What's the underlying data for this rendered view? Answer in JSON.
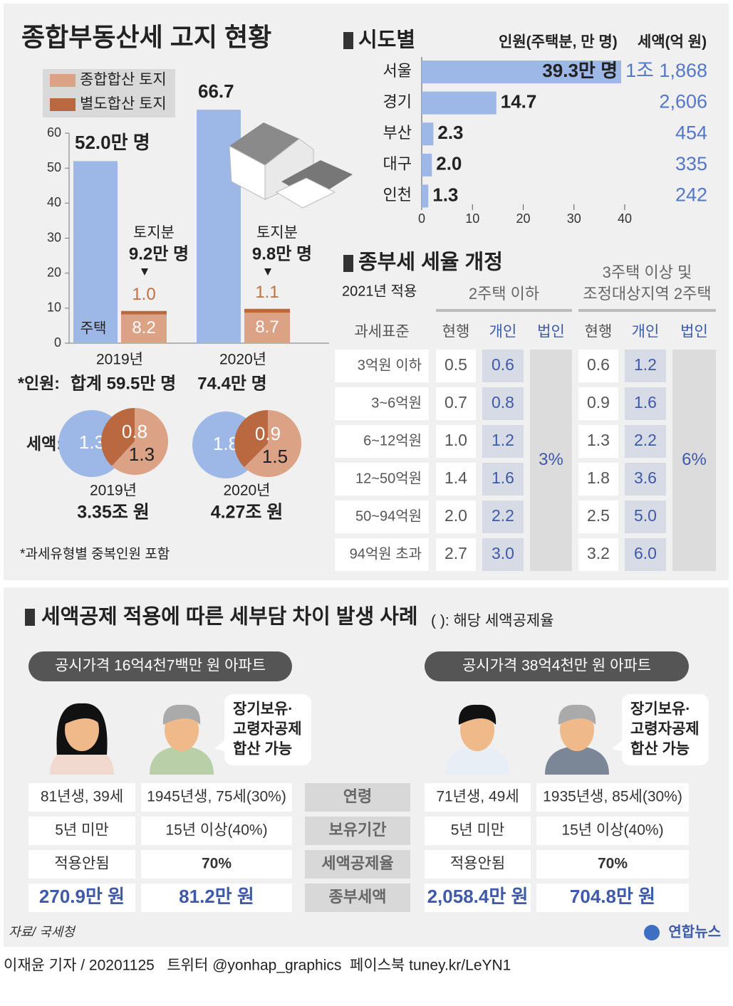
{
  "chart_data": [
    {
      "type": "bar",
      "title": "종합부동산세 고지 현황",
      "categories": [
        "2019년",
        "2020년"
      ],
      "series": [
        {
          "name": "주택",
          "color": "#9db8e6",
          "values": [
            52.0,
            66.7
          ],
          "value_labels": [
            "52.0만 명",
            "66.7"
          ]
        },
        {
          "name": "종합합산 토지",
          "color": "#dba285",
          "values": [
            8.2,
            8.7
          ]
        },
        {
          "name": "별도합산 토지",
          "color": "#b9683f",
          "values": [
            1.0,
            1.1
          ],
          "value_labels": [
            "1.0",
            "1.1"
          ]
        }
      ],
      "ylim": [
        0,
        60
      ],
      "yticks": [
        0,
        10,
        20,
        30,
        40,
        50,
        60
      ],
      "land_title": "토지분",
      "land_totals": [
        "9.2만 명",
        "9.8만 명"
      ],
      "total_label": "*인원:",
      "totals": [
        "합계 59.5만 명",
        "74.4만 명"
      ],
      "footnote": "*과세유형별 중복인원 포함"
    },
    {
      "type": "hbar",
      "title": "시도별",
      "x_label": "인원(주택분, 만 명)",
      "tax_header": "세액(억 원)",
      "categories": [
        "서울",
        "경기",
        "부산",
        "대구",
        "인천"
      ],
      "values": [
        39.3,
        14.7,
        2.3,
        2.0,
        1.3
      ],
      "value_labels": [
        "39.3만 명",
        "14.7",
        "2.3",
        "2.0",
        "1.3"
      ],
      "tax_labels": [
        "1조 1,868",
        "2,606",
        "454",
        "335",
        "242"
      ],
      "color": "#9db8e6",
      "xlim": [
        0,
        40
      ],
      "xticks": [
        0,
        10,
        20,
        30,
        40
      ]
    },
    {
      "type": "pie",
      "label": "세액:",
      "title": "2019년",
      "total": "3.35조 원",
      "circles": [
        {
          "values": [
            1.3
          ],
          "colors": [
            "#9db8e6"
          ]
        },
        {
          "values": [
            0.8,
            1.3
          ],
          "colors": [
            "#b9683f",
            "#dba285"
          ]
        }
      ]
    },
    {
      "type": "pie",
      "title": "2020년",
      "total": "4.27조 원",
      "circles": [
        {
          "values": [
            1.8
          ],
          "colors": [
            "#9db8e6"
          ]
        },
        {
          "values": [
            0.9,
            1.5
          ],
          "colors": [
            "#b9683f",
            "#dba285"
          ]
        }
      ]
    }
  ],
  "rate_table": {
    "title": "종부세 세율 개정",
    "subtitle": "2021년 적용",
    "groups": [
      [
        "2주택 이하"
      ],
      [
        "3주택 이상 및",
        "조정대상지역 2주택"
      ]
    ],
    "columns": [
      "과세표준",
      "현행",
      "개인",
      "법인",
      "현행",
      "개인",
      "법인"
    ],
    "rows": [
      [
        "3억원 이하",
        "0.5",
        "0.6",
        "0.6",
        "1.2"
      ],
      [
        "3~6억원",
        "0.7",
        "0.8",
        "0.9",
        "1.6"
      ],
      [
        "6~12억원",
        "1.0",
        "1.2",
        "1.3",
        "2.2"
      ],
      [
        "12~50억원",
        "1.4",
        "1.6",
        "1.8",
        "3.6"
      ],
      [
        "50~94억원",
        "2.0",
        "2.2",
        "2.5",
        "5.0"
      ],
      [
        "94억원 초과",
        "2.7",
        "3.0",
        "3.2",
        "6.0"
      ]
    ],
    "corporate": [
      "3%",
      "6%"
    ]
  },
  "cases": {
    "title": "세액공제 적용에 따른 세부담 차이 발생 사례",
    "note": "( ): 해당 세액공제율",
    "row_labels": [
      "연령",
      "보유기간",
      "세액공제율",
      "종부세액"
    ],
    "apartments": [
      {
        "label": "공시가격 16억4천7백만 원 아파트",
        "bubble": [
          "장기보유·",
          "고령자공제",
          "합산 가능"
        ],
        "people": [
          [
            "81년생, 39세",
            "5년 미만",
            "적용안됨",
            "270.9만 원"
          ],
          [
            "1945년생, 75세(30%)",
            "15년 이상(40%)",
            "70%",
            "81.2만 원"
          ]
        ]
      },
      {
        "label": "공시가격 38억4천만 원 아파트",
        "bubble": [
          "장기보유·",
          "고령자공제",
          "합산 가능"
        ],
        "people": [
          [
            "71년생, 49세",
            "5년 미만",
            "적용안됨",
            "2,058.4만 원"
          ],
          [
            "1935년생, 85세(30%)",
            "15년 이상(40%)",
            "70%",
            "704.8만 원"
          ]
        ]
      }
    ]
  },
  "footer": {
    "source": "자료/ 국세청",
    "brand": "연합뉴스",
    "credit": "이재윤 기자 / 20201125   트위터 @yonhap_graphics  페이스북 tuney.kr/LeYN1"
  }
}
